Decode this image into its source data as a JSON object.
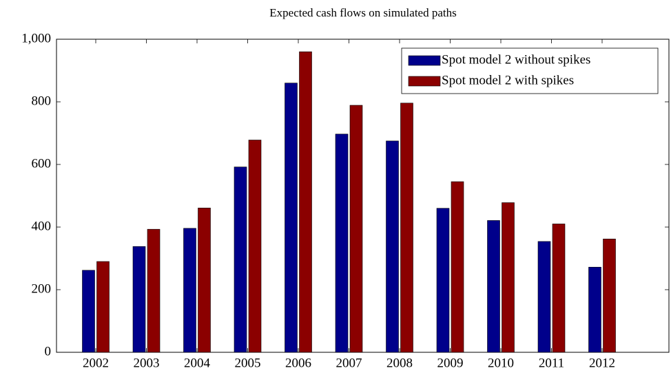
{
  "chart_data": {
    "type": "bar",
    "title": "Expected cash flows on simulated paths",
    "categories": [
      "2002",
      "2003",
      "2004",
      "2005",
      "2006",
      "2007",
      "2008",
      "2009",
      "2010",
      "2011",
      "2012"
    ],
    "series": [
      {
        "name": "Spot model 2 without spikes",
        "color": "#00008b",
        "values": [
          262,
          338,
          396,
          592,
          860,
          697,
          675,
          460,
          421,
          354,
          272
        ]
      },
      {
        "name": "Spot model 2 with spikes",
        "color": "#8b0000",
        "values": [
          290,
          393,
          461,
          678,
          960,
          789,
          796,
          545,
          478,
          410,
          362
        ]
      }
    ],
    "ylim": [
      0,
      1000
    ],
    "yticks": [
      0,
      200,
      400,
      600,
      800,
      {
        "value": 1000,
        "label": "1,000"
      }
    ],
    "legend": "top-right"
  }
}
